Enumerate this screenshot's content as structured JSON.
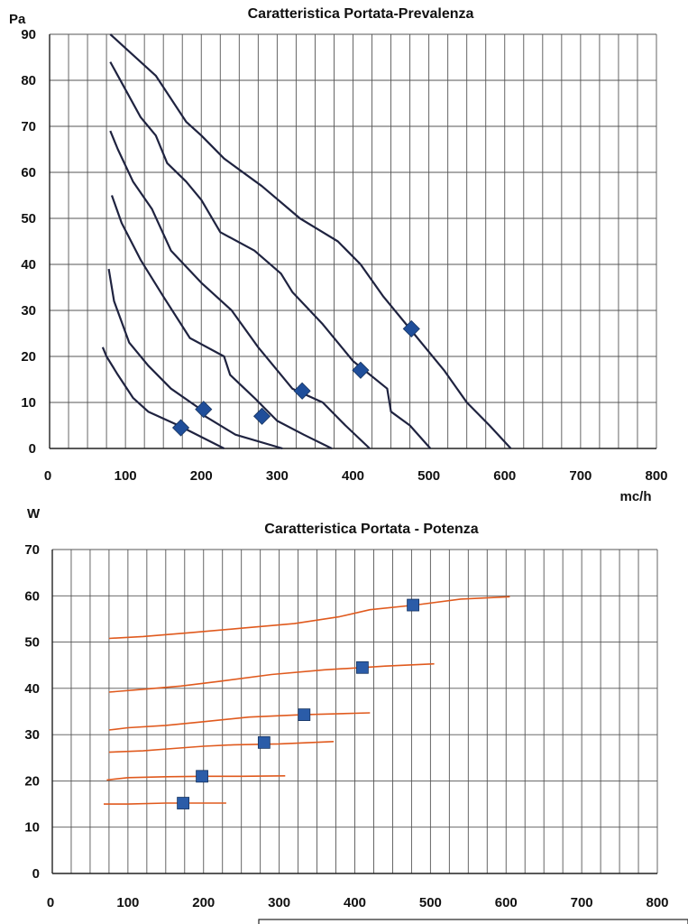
{
  "chart_data": [
    {
      "type": "line",
      "title": "Caratteristica Portata-Prevalenza",
      "ylabel": "Pa",
      "xlabel": "mc/h",
      "xlim": [
        0,
        800
      ],
      "ylim": [
        0,
        90
      ],
      "x_ticks": [
        "0",
        "100",
        "200",
        "300",
        "400",
        "500",
        "600",
        "700",
        "800"
      ],
      "y_ticks": [
        "0",
        "10",
        "20",
        "30",
        "40",
        "50",
        "60",
        "70",
        "80",
        "90"
      ],
      "grid": true,
      "line_color": "#1f2340",
      "marker_color": "#1f4e9a",
      "marker": "diamond",
      "series": [
        {
          "points": [
            [
              70,
              22
            ],
            [
              75,
              20
            ],
            [
              90,
              16
            ],
            [
              110,
              11
            ],
            [
              130,
              8
            ],
            [
              170,
              5
            ],
            [
              230,
              0
            ]
          ],
          "marker": [
            173,
            4.5
          ]
        },
        {
          "points": [
            [
              78,
              39
            ],
            [
              85,
              32
            ],
            [
              105,
              23
            ],
            [
              130,
              18
            ],
            [
              160,
              13
            ],
            [
              195,
              9
            ],
            [
              205,
              7
            ],
            [
              245,
              3
            ],
            [
              307,
              0
            ]
          ],
          "marker": [
            203,
            8.5
          ]
        },
        {
          "points": [
            [
              82,
              55
            ],
            [
              95,
              49
            ],
            [
              120,
              41
            ],
            [
              150,
              33
            ],
            [
              185,
              24
            ],
            [
              230,
              20
            ],
            [
              238,
              16
            ],
            [
              270,
              11
            ],
            [
              300,
              6
            ],
            [
              335,
              3
            ],
            [
              372,
              0
            ]
          ],
          "marker": [
            280,
            7
          ]
        },
        {
          "points": [
            [
              80,
              69
            ],
            [
              90,
              65
            ],
            [
              110,
              58
            ],
            [
              135,
              52
            ],
            [
              160,
              43
            ],
            [
              200,
              36
            ],
            [
              240,
              30
            ],
            [
              275,
              22
            ],
            [
              300,
              17
            ],
            [
              320,
              13
            ],
            [
              360,
              10
            ],
            [
              390,
              5
            ],
            [
              422,
              0
            ]
          ],
          "marker": [
            333,
            12.5
          ]
        },
        {
          "points": [
            [
              80,
              84
            ],
            [
              100,
              78
            ],
            [
              120,
              72
            ],
            [
              140,
              68
            ],
            [
              155,
              62
            ],
            [
              180,
              58
            ],
            [
              200,
              54
            ],
            [
              225,
              47
            ],
            [
              270,
              43
            ],
            [
              305,
              38
            ],
            [
              320,
              34
            ],
            [
              360,
              27
            ],
            [
              400,
              19
            ],
            [
              445,
              13
            ],
            [
              450,
              8
            ],
            [
              475,
              5
            ],
            [
              502,
              0
            ]
          ],
          "marker": [
            410,
            17
          ]
        },
        {
          "points": [
            [
              80,
              90
            ],
            [
              100,
              87
            ],
            [
              140,
              81
            ],
            [
              180,
              71
            ],
            [
              200,
              68
            ],
            [
              230,
              63
            ],
            [
              280,
              57
            ],
            [
              330,
              50
            ],
            [
              380,
              45
            ],
            [
              410,
              40
            ],
            [
              440,
              33
            ],
            [
              480,
              25
            ],
            [
              520,
              17
            ],
            [
              550,
              10
            ],
            [
              580,
              5
            ],
            [
              608,
              0
            ]
          ],
          "marker": [
            477,
            26
          ]
        }
      ]
    },
    {
      "type": "line",
      "title": "Caratteristica Portata - Potenza",
      "ylabel": "W",
      "xlabel": "",
      "xlim": [
        0,
        800
      ],
      "ylim": [
        0,
        70
      ],
      "x_ticks": [
        "0",
        "100",
        "200",
        "300",
        "400",
        "500",
        "600",
        "700",
        "800"
      ],
      "y_ticks": [
        "0",
        "10",
        "20",
        "30",
        "40",
        "50",
        "60",
        "70"
      ],
      "grid": true,
      "line_color": "#e05a1e",
      "marker_color": "#2b5ca8",
      "marker": "square",
      "series": [
        {
          "points": [
            [
              68,
              15
            ],
            [
              100,
              15
            ],
            [
              150,
              15.2
            ],
            [
              200,
              15.2
            ],
            [
              230,
              15.2
            ]
          ],
          "marker": [
            173,
            15.2
          ]
        },
        {
          "points": [
            [
              72,
              20.2
            ],
            [
              100,
              20.7
            ],
            [
              150,
              20.9
            ],
            [
              200,
              21
            ],
            [
              250,
              21
            ],
            [
              308,
              21.1
            ]
          ],
          "marker": [
            198,
            21
          ]
        },
        {
          "points": [
            [
              75,
              26.2
            ],
            [
              120,
              26.5
            ],
            [
              160,
              27
            ],
            [
              200,
              27.5
            ],
            [
              240,
              27.8
            ],
            [
              300,
              28
            ],
            [
              372,
              28.5
            ]
          ],
          "marker": [
            280,
            28.3
          ]
        },
        {
          "points": [
            [
              75,
              31
            ],
            [
              100,
              31.5
            ],
            [
              150,
              32
            ],
            [
              200,
              32.8
            ],
            [
              260,
              33.8
            ],
            [
              330,
              34.3
            ],
            [
              420,
              34.7
            ]
          ],
          "marker": [
            333,
            34.3
          ]
        },
        {
          "points": [
            [
              75,
              39.2
            ],
            [
              120,
              39.8
            ],
            [
              170,
              40.5
            ],
            [
              220,
              41.5
            ],
            [
              290,
              43
            ],
            [
              360,
              44
            ],
            [
              410,
              44.5
            ],
            [
              440,
              44.8
            ],
            [
              505,
              45.3
            ]
          ],
          "marker": [
            410,
            44.5
          ]
        },
        {
          "points": [
            [
              75,
              50.8
            ],
            [
              120,
              51.2
            ],
            [
              180,
              52
            ],
            [
              250,
              53
            ],
            [
              320,
              54
            ],
            [
              380,
              55.5
            ],
            [
              420,
              57
            ],
            [
              480,
              58
            ],
            [
              540,
              59.3
            ],
            [
              605,
              59.8
            ]
          ],
          "marker": [
            477,
            58
          ]
        }
      ]
    }
  ]
}
